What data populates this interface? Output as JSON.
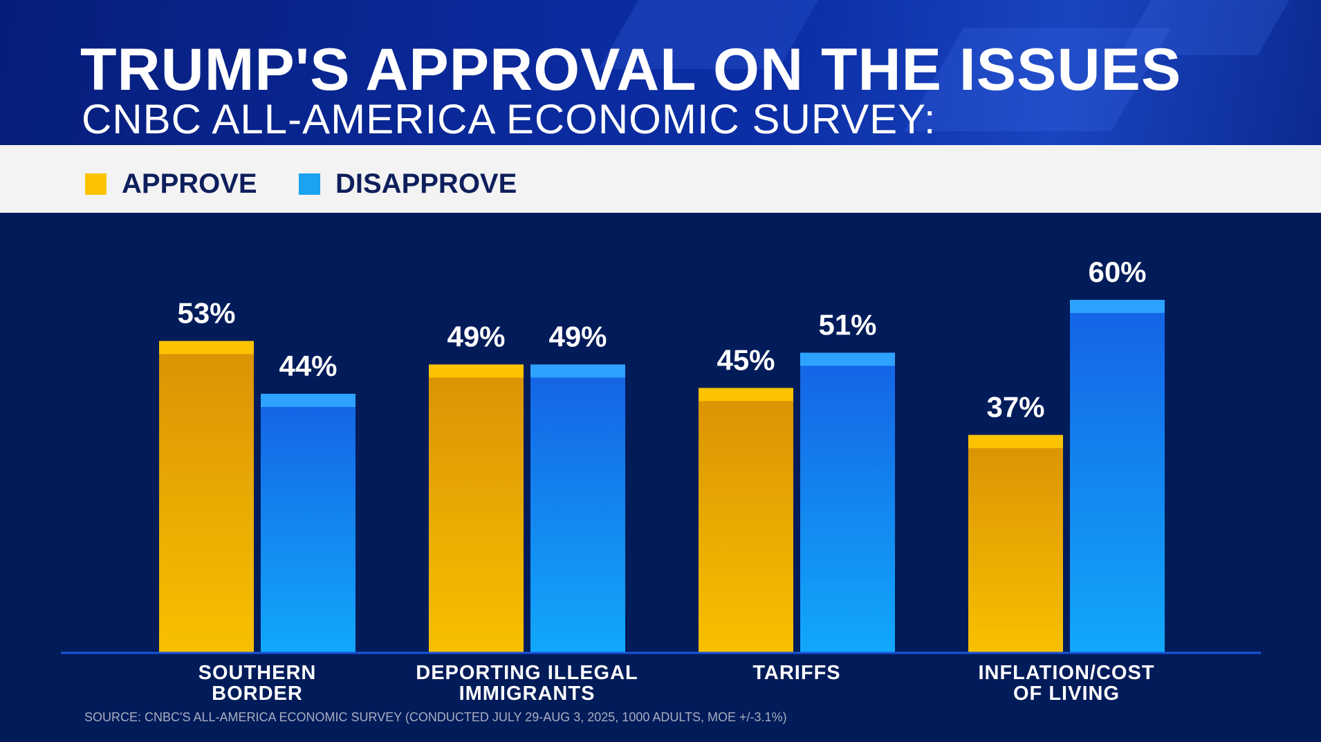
{
  "header": {
    "title": "TRUMP'S APPROVAL ON THE ISSUES",
    "subtitle": "CNBC ALL-AMERICA ECONOMIC SURVEY:"
  },
  "chart_data": {
    "type": "bar",
    "title": "TRUMP'S APPROVAL ON THE ISSUES",
    "subtitle": "CNBC ALL-AMERICA ECONOMIC SURVEY:",
    "categories": [
      [
        "SOUTHERN",
        "BORDER"
      ],
      [
        "DEPORTING ILLEGAL",
        "IMMIGRANTS"
      ],
      [
        "TARIFFS"
      ],
      [
        "INFLATION/COST",
        "OF LIVING"
      ]
    ],
    "series": [
      {
        "name": "APPROVE",
        "color": "#fcc300",
        "values": [
          53,
          49,
          45,
          37
        ],
        "labels": [
          "53%",
          "49%",
          "45%",
          "37%"
        ]
      },
      {
        "name": "DISAPPROVE",
        "color": "#1aa3f0",
        "values": [
          44,
          49,
          51,
          60
        ],
        "labels": [
          "44%",
          "49%",
          "51%",
          "60%"
        ]
      }
    ],
    "legend": "top-left",
    "ylim": [
      0,
      100
    ],
    "grid": false,
    "source": "SOURCE: CNBC'S ALL-AMERICA ECONOMIC SURVEY (CONDUCTED JULY 29-AUG 3, 2025, 1000 ADULTS, MOE +/-3.1%)"
  }
}
